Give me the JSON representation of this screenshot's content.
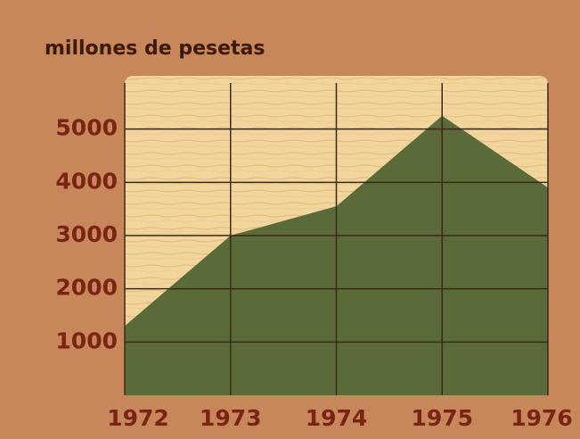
{
  "chart_data": {
    "type": "area",
    "title": "millones de pesetas",
    "x": [
      1972,
      1973,
      1974,
      1975,
      1976
    ],
    "values": [
      1300,
      3000,
      3550,
      5250,
      3900
    ],
    "color": "#5a6a38",
    "xlim": [
      1972,
      1976
    ],
    "xticks": [
      1972,
      1973,
      1974,
      1975,
      1976
    ],
    "ylim": [
      0,
      6000
    ],
    "yticks": [
      1000,
      2000,
      3000,
      4000,
      5000
    ],
    "grid": true
  }
}
